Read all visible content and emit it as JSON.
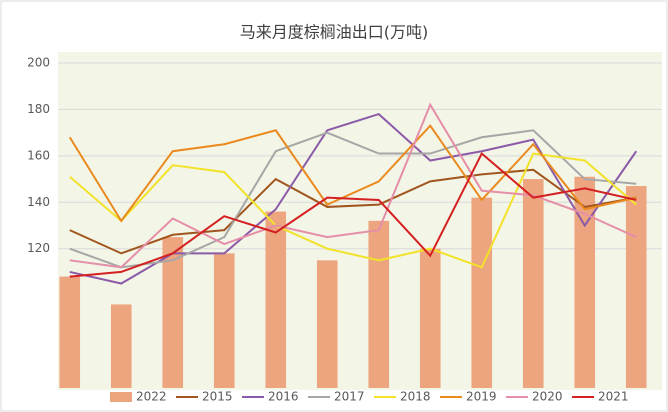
{
  "chart_data": {
    "type": "bar_line",
    "title": "马来月度棕榈油出口(万吨)",
    "categories": [
      null,
      null,
      null,
      null,
      null,
      null,
      null,
      null,
      null,
      null,
      null,
      null
    ],
    "bars": {
      "name": "2022",
      "color": "#eda57f",
      "values": [
        108,
        96,
        125,
        118,
        136,
        115,
        132,
        120,
        142,
        150,
        151,
        147
      ]
    },
    "series": [
      {
        "name": "2015",
        "color": "#a0561e",
        "values": [
          128,
          118,
          126,
          128,
          150,
          138,
          139,
          149,
          152,
          154,
          138,
          142
        ]
      },
      {
        "name": "2016",
        "color": "#8b5aa8",
        "values": [
          110,
          105,
          118,
          118,
          137,
          171,
          178,
          158,
          162,
          167,
          130,
          162
        ]
      },
      {
        "name": "2017",
        "color": "#a6a6a6",
        "values": [
          120,
          112,
          115,
          125,
          162,
          170,
          161,
          161,
          168,
          171,
          150,
          148
        ]
      },
      {
        "name": "2018",
        "color": "#f2e22a",
        "values": [
          151,
          132,
          156,
          153,
          130,
          120,
          115,
          120,
          112,
          161,
          158,
          139
        ]
      },
      {
        "name": "2019",
        "color": "#ea8a1e",
        "values": [
          168,
          132,
          162,
          165,
          171,
          139,
          149,
          173,
          141,
          165,
          137,
          142
        ]
      },
      {
        "name": "2020",
        "color": "#e58ea8",
        "values": [
          115,
          112,
          133,
          122,
          130,
          125,
          128,
          182,
          145,
          143,
          135,
          125
        ]
      },
      {
        "name": "2021",
        "color": "#d42020",
        "values": [
          108,
          110,
          118,
          134,
          127,
          142,
          141,
          117,
          161,
          142,
          146,
          141
        ]
      }
    ],
    "ylim": [
      60,
      200
    ],
    "yticks": [
      120,
      140,
      160,
      180,
      200
    ],
    "grid": true
  }
}
